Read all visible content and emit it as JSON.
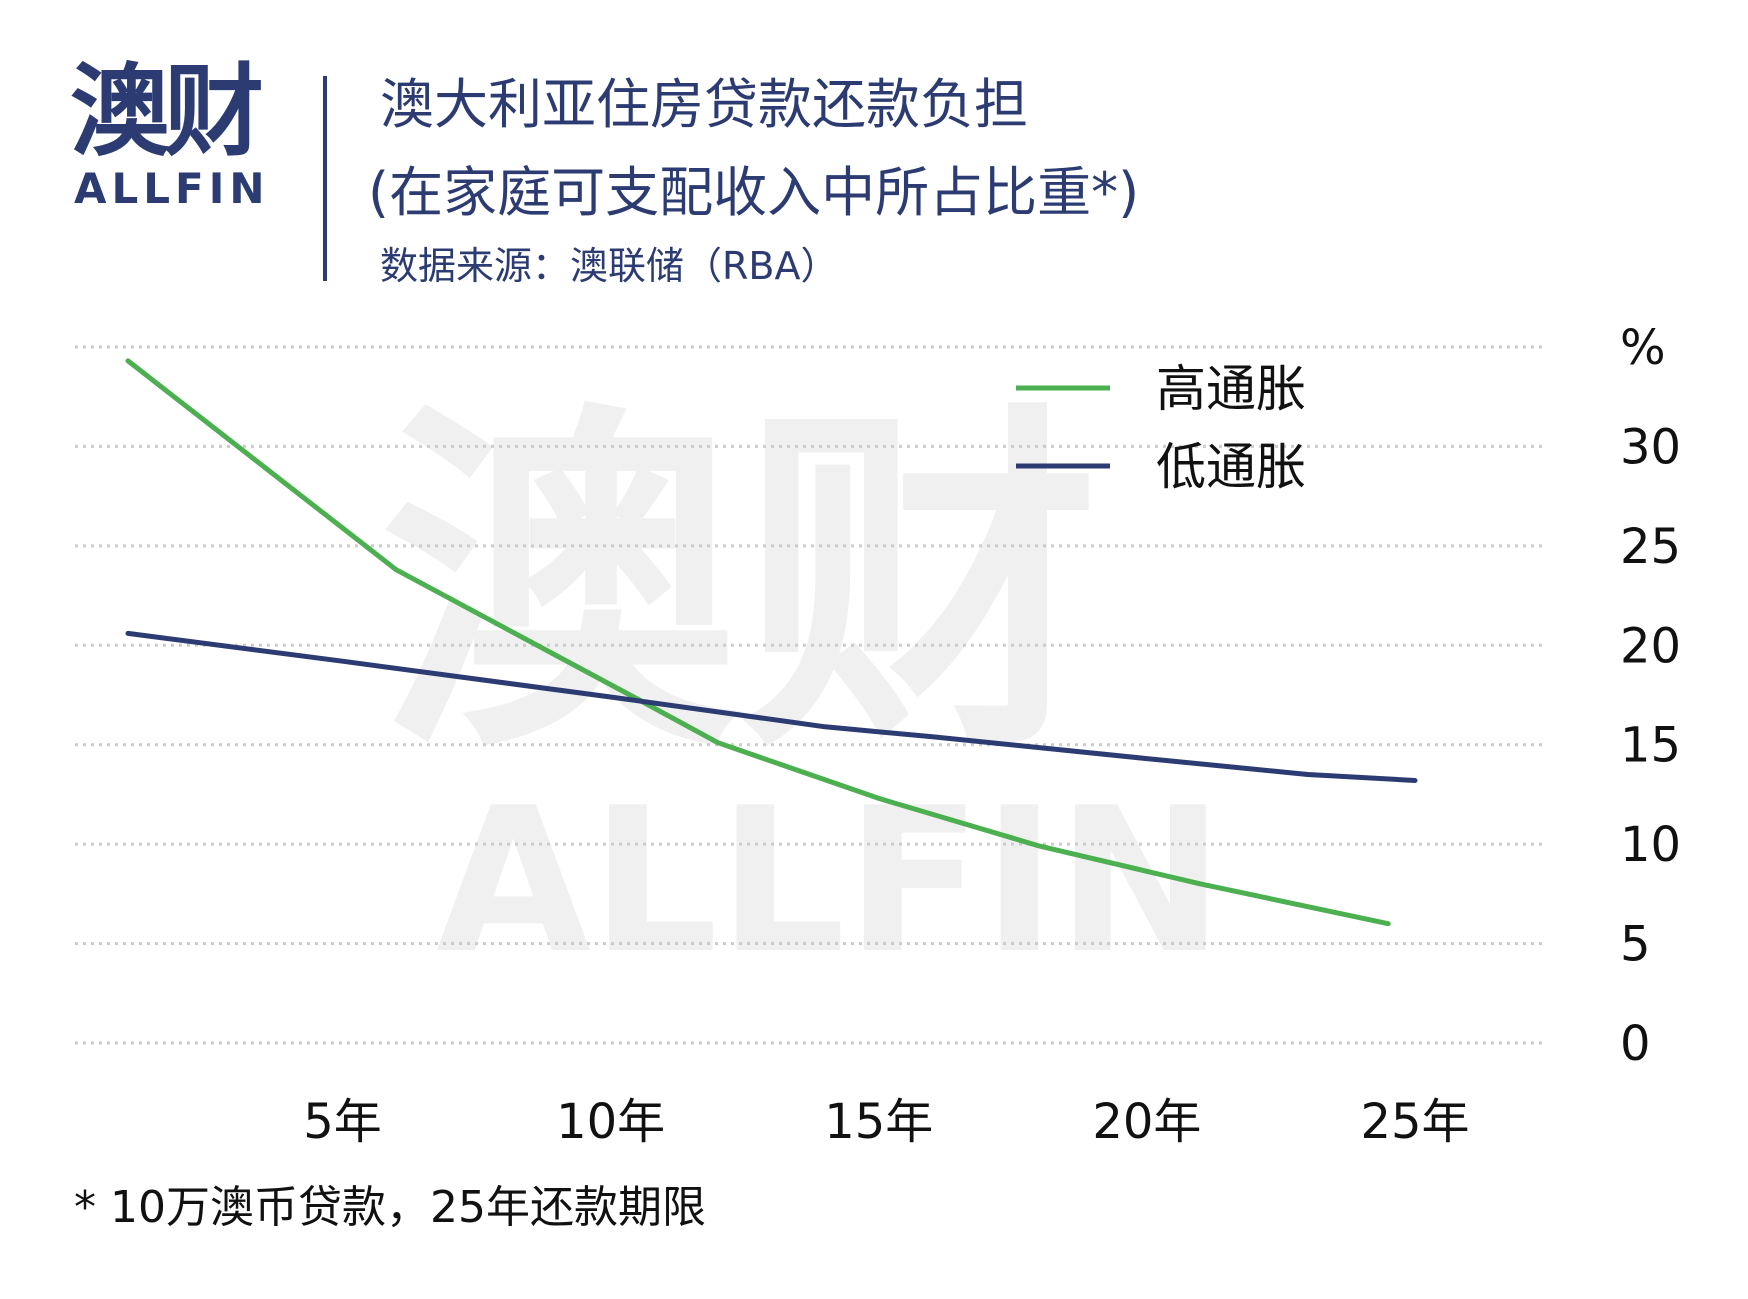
{
  "logo": {
    "cn": "澳财",
    "en": "ALLFIN"
  },
  "header": {
    "title": "澳大利亚住房贷款还款负担",
    "subtitle": "(在家庭可支配收入中所占比重*)",
    "source": "数据来源：澳联储（RBA）"
  },
  "watermark": {
    "cn": "澳财",
    "en": "ALLFIN"
  },
  "footnote": "* 10万澳币贷款，25年还款期限",
  "colors": {
    "brand": "#2c3c72",
    "high": "#4caf50",
    "low": "#2c3c72",
    "grid": "#cccccc"
  },
  "chart_data": {
    "type": "line",
    "ylabel": "%",
    "ylim": [
      0,
      35
    ],
    "yticks": [
      0,
      5,
      10,
      15,
      20,
      25,
      30
    ],
    "xlim": [
      1,
      25
    ],
    "xticks": [
      {
        "x": 5,
        "label": "5年"
      },
      {
        "x": 10,
        "label": "10年"
      },
      {
        "x": 15,
        "label": "15年"
      },
      {
        "x": 20,
        "label": "20年"
      },
      {
        "x": 25,
        "label": "25年"
      }
    ],
    "grid": true,
    "legend_position": "top-right",
    "series": [
      {
        "name": "高通胀",
        "color": "#4caf50",
        "points": [
          [
            1,
            34.3
          ],
          [
            6,
            23.8
          ],
          [
            10.5,
            17.3
          ],
          [
            12,
            15.1
          ],
          [
            15,
            12.3
          ],
          [
            18,
            9.9
          ],
          [
            21,
            8.0
          ],
          [
            24.5,
            6.0
          ]
        ]
      },
      {
        "name": "低通胀",
        "color": "#2c3c72",
        "points": [
          [
            1,
            20.6
          ],
          [
            5,
            19.2
          ],
          [
            10,
            17.4
          ],
          [
            14,
            15.9
          ],
          [
            16,
            15.4
          ],
          [
            20,
            14.3
          ],
          [
            23,
            13.5
          ],
          [
            25,
            13.2
          ]
        ]
      }
    ]
  }
}
